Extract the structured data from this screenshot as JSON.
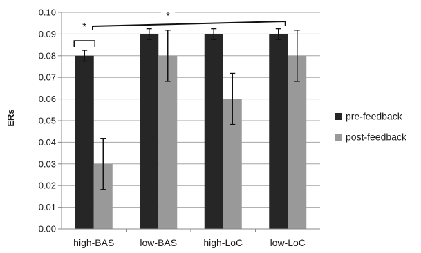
{
  "chart_data": {
    "type": "bar",
    "title": "",
    "xlabel": "",
    "ylabel": "ERs",
    "ylim": [
      0,
      0.1
    ],
    "yticks": [
      "0.00",
      "0.01",
      "0.02",
      "0.03",
      "0.04",
      "0.05",
      "0.06",
      "0.07",
      "0.08",
      "0.09",
      "0.10"
    ],
    "grid": true,
    "legend_position": "right",
    "categories": [
      "high-BAS",
      "low-BAS",
      "high-LoC",
      "low-LoC"
    ],
    "series": [
      {
        "name": "pre-feedback",
        "color": "#262626",
        "values": [
          0.08,
          0.09,
          0.09,
          0.09
        ],
        "errors": [
          0.0025,
          0.0025,
          0.0025,
          0.0025
        ]
      },
      {
        "name": "post-feedback",
        "color": "#999999",
        "values": [
          0.03,
          0.08,
          0.06,
          0.08
        ],
        "errors": [
          0.0118,
          0.0118,
          0.0118,
          0.0118
        ]
      }
    ],
    "annotations": [
      {
        "label": "*",
        "from_category": 0,
        "to_category": 0
      },
      {
        "label": "*",
        "from_category": 0,
        "to_category": 3
      }
    ]
  }
}
